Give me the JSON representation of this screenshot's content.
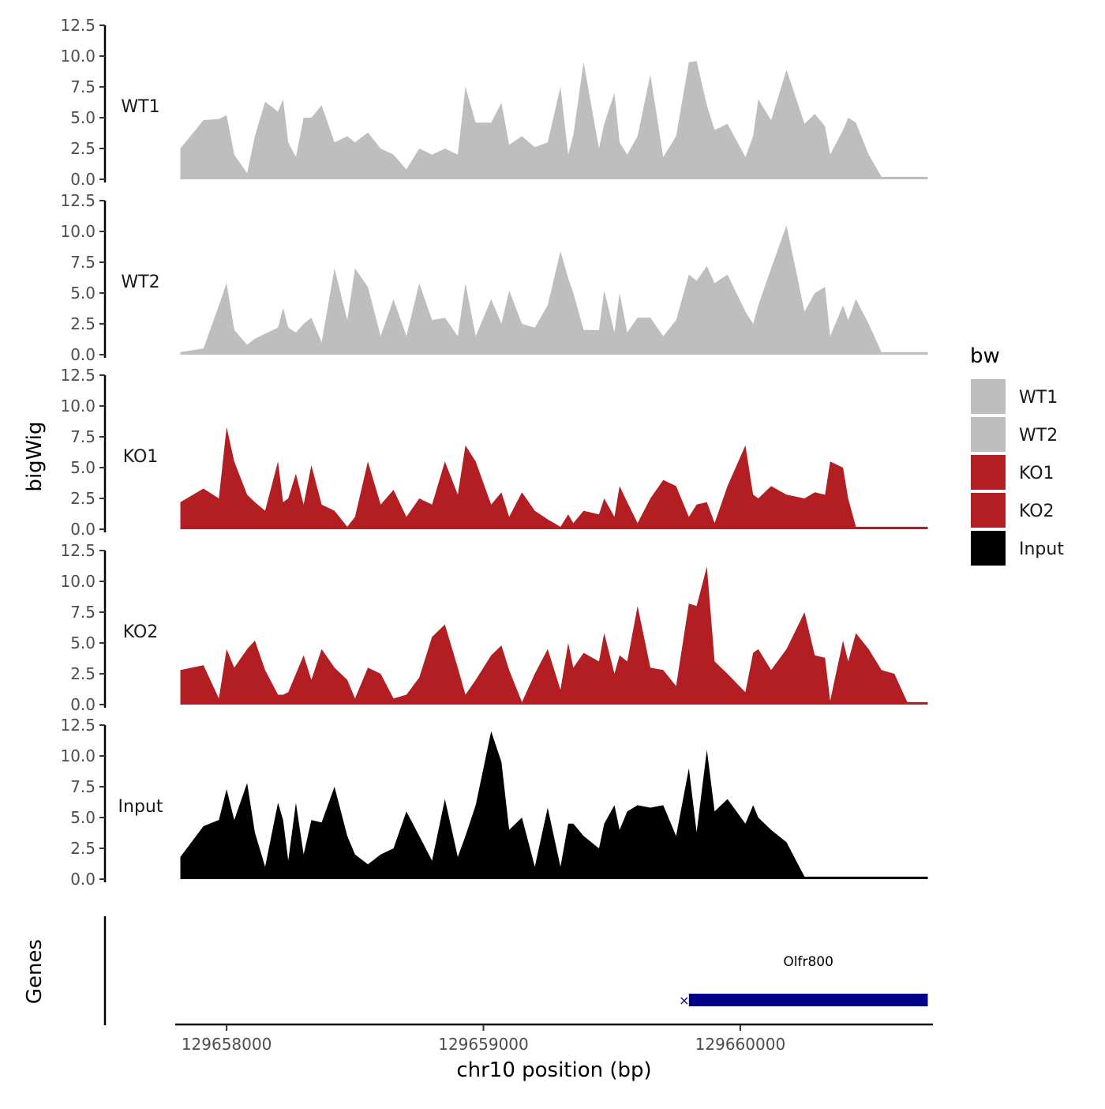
{
  "chart_data": {
    "type": "area",
    "chromosome": "chr10",
    "xlabel": "chr10 position (bp)",
    "ylabel": "bigWig",
    "genes_label": "Genes",
    "xlim": [
      129657800,
      129660750
    ],
    "x_ticks": [
      129658000,
      129659000,
      129660000
    ],
    "x_tick_labels": [
      "129658000",
      "129659000",
      "129660000"
    ],
    "ylim": [
      0,
      12.5
    ],
    "y_ticks": [
      0,
      2.5,
      5,
      7.5,
      10,
      12.5
    ],
    "y_tick_labels": [
      "0.0",
      "2.5",
      "5.0",
      "7.5",
      "10.0",
      "12.5"
    ],
    "x": [
      129657820,
      129657910,
      129657970,
      129658000,
      129658030,
      129658080,
      129658110,
      129658150,
      129658200,
      129658220,
      129658240,
      129658270,
      129658300,
      129658330,
      129658370,
      129658420,
      129658470,
      129658500,
      129658550,
      129658600,
      129658650,
      129658700,
      129658750,
      129658800,
      129658850,
      129658900,
      129658930,
      129658970,
      129659030,
      129659070,
      129659100,
      129659150,
      129659200,
      129659250,
      129659300,
      129659330,
      129659350,
      129659390,
      129659450,
      129659470,
      129659510,
      129659530,
      129659560,
      129659600,
      129659650,
      129659700,
      129659750,
      129659800,
      129659830,
      129659870,
      129659900,
      129659950,
      129660020,
      129660050,
      129660070,
      129660120,
      129660180,
      129660250,
      129660290,
      129660330,
      129660350,
      129660400,
      129660420,
      129660450,
      129660500,
      129660550,
      129660600,
      129660650,
      129660700,
      129660730
    ],
    "series": [
      {
        "name": "WT1",
        "color": "#bebebe",
        "values": [
          2.5,
          4.8,
          4.9,
          5.2,
          2.0,
          0.5,
          3.5,
          6.3,
          5.5,
          6.5,
          3.0,
          1.8,
          5.0,
          5.0,
          6.0,
          3.0,
          3.5,
          3.0,
          3.8,
          2.5,
          2.0,
          0.8,
          2.5,
          2.0,
          2.5,
          2.0,
          7.5,
          4.6,
          4.6,
          6.2,
          2.8,
          3.5,
          2.6,
          3.0,
          7.5,
          2.0,
          3.6,
          9.5,
          2.5,
          4.5,
          7.0,
          3.0,
          2.0,
          3.5,
          8.5,
          1.8,
          3.5,
          9.5,
          9.6,
          6.0,
          4.0,
          4.5,
          1.8,
          3.5,
          6.5,
          4.8,
          8.9,
          4.5,
          5.3,
          4.3,
          2.0,
          4.0,
          5.0,
          4.6,
          2.0,
          0.2,
          0.2,
          0.2,
          0.2,
          0.2
        ]
      },
      {
        "name": "WT2",
        "color": "#bebebe",
        "values": [
          0.2,
          0.5,
          4.0,
          5.8,
          2.0,
          0.8,
          1.3,
          1.7,
          2.2,
          3.8,
          2.2,
          1.8,
          2.5,
          3.0,
          1.0,
          7.0,
          2.8,
          7.0,
          5.5,
          1.5,
          4.5,
          1.5,
          5.8,
          2.8,
          3.0,
          1.5,
          5.8,
          1.5,
          4.5,
          2.5,
          5.2,
          2.5,
          2.2,
          4.0,
          8.4,
          6.2,
          5.0,
          2.0,
          2.0,
          5.2,
          1.8,
          5.0,
          1.8,
          3.0,
          3.0,
          1.5,
          2.8,
          6.5,
          6.0,
          7.2,
          5.8,
          6.5,
          3.5,
          2.5,
          4.0,
          7.0,
          10.5,
          3.5,
          5.0,
          5.5,
          1.5,
          4.0,
          2.8,
          4.5,
          2.5,
          0.2,
          0.2,
          0.2,
          0.2,
          0.2
        ]
      },
      {
        "name": "KO1",
        "color": "#b21e21",
        "values": [
          2.2,
          3.3,
          2.5,
          8.3,
          5.5,
          2.8,
          2.2,
          1.5,
          5.5,
          2.2,
          2.5,
          4.5,
          2.0,
          5.2,
          2.0,
          1.5,
          0.2,
          1.0,
          5.5,
          2.0,
          3.2,
          1.0,
          2.5,
          2.0,
          5.5,
          2.8,
          6.8,
          5.5,
          2.0,
          3.0,
          1.0,
          3.0,
          1.5,
          0.8,
          0.2,
          1.2,
          0.5,
          1.5,
          1.2,
          2.5,
          1.0,
          3.5,
          2.2,
          0.5,
          2.5,
          4.0,
          3.5,
          1.0,
          2.0,
          2.2,
          0.5,
          3.5,
          6.8,
          2.8,
          2.5,
          3.5,
          2.8,
          2.5,
          3.0,
          2.8,
          5.5,
          5.0,
          2.5,
          0.2,
          0.2,
          0.2,
          0.2,
          0.2,
          0.2,
          0.2
        ]
      },
      {
        "name": "KO2",
        "color": "#b21e21",
        "values": [
          2.8,
          3.2,
          0.5,
          4.5,
          3.0,
          4.5,
          5.2,
          2.8,
          0.8,
          0.8,
          1.0,
          2.5,
          4.0,
          2.0,
          4.5,
          3.0,
          2.0,
          0.5,
          3.0,
          2.5,
          0.5,
          0.8,
          2.2,
          5.5,
          6.5,
          3.0,
          0.8,
          2.0,
          4.0,
          4.8,
          2.8,
          0.2,
          2.5,
          4.5,
          1.2,
          5.0,
          3.0,
          4.2,
          3.5,
          5.8,
          2.5,
          4.0,
          3.5,
          8.0,
          3.0,
          2.8,
          1.5,
          8.2,
          8.0,
          11.2,
          3.5,
          2.5,
          1.0,
          4.2,
          4.5,
          2.8,
          4.5,
          7.5,
          4.0,
          3.8,
          0.3,
          5.2,
          3.5,
          5.8,
          4.5,
          2.8,
          2.5,
          0.2,
          0.2,
          0.2
        ]
      },
      {
        "name": "Input",
        "color": "#000000",
        "values": [
          1.8,
          4.3,
          4.8,
          7.3,
          4.8,
          7.8,
          3.8,
          1.0,
          6.2,
          4.8,
          1.5,
          6.2,
          2.0,
          4.8,
          4.6,
          7.5,
          3.5,
          2.0,
          1.2,
          2.0,
          2.5,
          5.5,
          3.5,
          1.5,
          6.5,
          1.8,
          3.5,
          6.0,
          12.0,
          9.5,
          4.0,
          5.0,
          1.0,
          5.8,
          1.0,
          4.5,
          4.5,
          3.5,
          2.5,
          4.5,
          6.0,
          4.0,
          5.5,
          6.0,
          5.8,
          6.0,
          3.5,
          9.0,
          3.8,
          10.5,
          5.5,
          6.5,
          4.5,
          6.0,
          5.0,
          4.0,
          3.0,
          0.2,
          0.2,
          0.2,
          0.2,
          0.2,
          0.2,
          0.2,
          0.2,
          0.2,
          0.2,
          0.2,
          0.2,
          0.2
        ]
      }
    ],
    "tracks": [
      "WT1",
      "WT2",
      "KO1",
      "KO2",
      "Input"
    ],
    "legend": {
      "title": "bw",
      "position": "right",
      "entries": [
        {
          "label": "WT1",
          "color": "#bebebe"
        },
        {
          "label": "WT2",
          "color": "#bebebe"
        },
        {
          "label": "KO1",
          "color": "#b21e21"
        },
        {
          "label": "KO2",
          "color": "#b21e21"
        },
        {
          "label": "Input",
          "color": "#000000"
        }
      ]
    },
    "genes": [
      {
        "name": "Olfr800",
        "start": 129659800,
        "end": 129660730,
        "color": "#00008b"
      }
    ]
  }
}
